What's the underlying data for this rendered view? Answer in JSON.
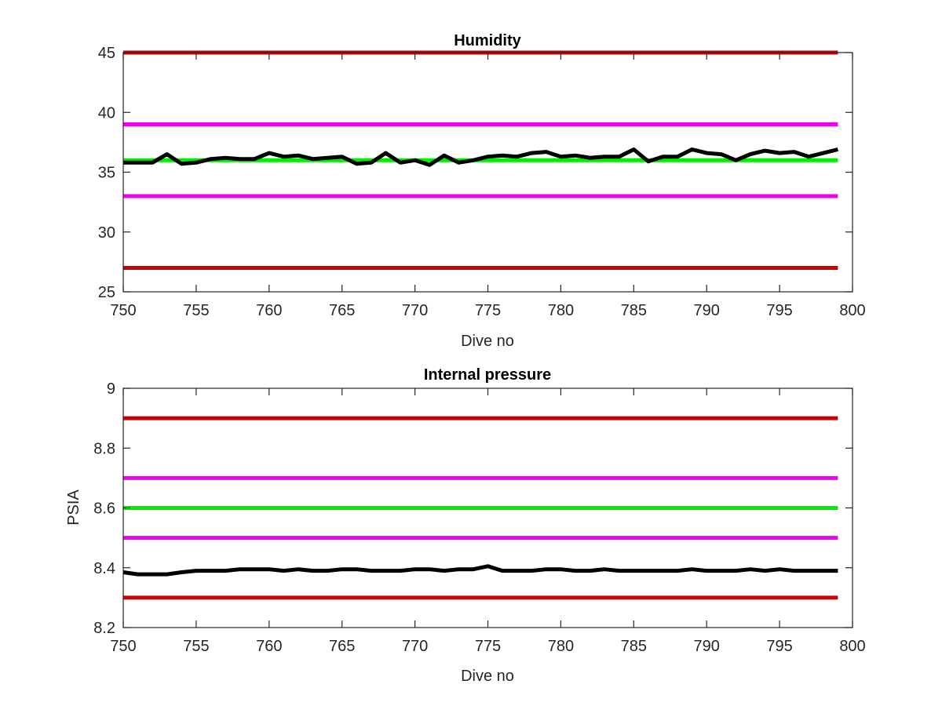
{
  "chart_data": [
    {
      "type": "line",
      "title": "Humidity",
      "xlabel": "Dive no",
      "ylabel": "",
      "xlim": [
        750,
        800
      ],
      "ylim": [
        25,
        45
      ],
      "xticks": [
        750,
        755,
        760,
        765,
        770,
        775,
        780,
        785,
        790,
        795,
        800
      ],
      "yticks": [
        25,
        30,
        35,
        40,
        45
      ],
      "x": [
        750,
        751,
        752,
        753,
        754,
        755,
        756,
        757,
        758,
        759,
        760,
        761,
        762,
        763,
        764,
        765,
        766,
        767,
        768,
        769,
        770,
        771,
        772,
        773,
        774,
        775,
        776,
        777,
        778,
        779,
        780,
        781,
        782,
        783,
        784,
        785,
        786,
        787,
        788,
        789,
        790,
        791,
        792,
        793,
        794,
        795,
        796,
        797,
        798,
        799
      ],
      "series": [
        {
          "color": "#000000",
          "values": [
            35.8,
            35.8,
            35.8,
            36.5,
            35.7,
            35.8,
            36.1,
            36.2,
            36.1,
            36.1,
            36.6,
            36.3,
            36.4,
            36.1,
            36.2,
            36.3,
            35.7,
            35.8,
            36.6,
            35.8,
            36.0,
            35.6,
            36.4,
            35.8,
            36.0,
            36.3,
            36.4,
            36.3,
            36.6,
            36.7,
            36.3,
            36.4,
            36.2,
            36.3,
            36.3,
            36.9,
            35.9,
            36.3,
            36.3,
            36.9,
            36.6,
            36.5,
            36.0,
            36.5,
            36.8,
            36.6,
            36.7,
            36.3,
            36.6,
            36.9
          ]
        },
        {
          "color": "#cc0000",
          "values": [
            45,
            45,
            45,
            45,
            45,
            45,
            45,
            45,
            45,
            45,
            45,
            45,
            45,
            45,
            45,
            45,
            45,
            45,
            45,
            45,
            45,
            45,
            45,
            45,
            45,
            45,
            45,
            45,
            45,
            45,
            45,
            45,
            45,
            45,
            45,
            45,
            45,
            45,
            45,
            45,
            45,
            45,
            45,
            45,
            45,
            45,
            45,
            45,
            45,
            45
          ]
        },
        {
          "color": "#ee00ee",
          "values": [
            39,
            39,
            39,
            39,
            39,
            39,
            39,
            39,
            39,
            39,
            39,
            39,
            39,
            39,
            39,
            39,
            39,
            39,
            39,
            39,
            39,
            39,
            39,
            39,
            39,
            39,
            39,
            39,
            39,
            39,
            39,
            39,
            39,
            39,
            39,
            39,
            39,
            39,
            39,
            39,
            39,
            39,
            39,
            39,
            39,
            39,
            39,
            39,
            39,
            39
          ]
        },
        {
          "color": "#00ee00",
          "values": [
            36,
            36,
            36,
            36,
            36,
            36,
            36,
            36,
            36,
            36,
            36,
            36,
            36,
            36,
            36,
            36,
            36,
            36,
            36,
            36,
            36,
            36,
            36,
            36,
            36,
            36,
            36,
            36,
            36,
            36,
            36,
            36,
            36,
            36,
            36,
            36,
            36,
            36,
            36,
            36,
            36,
            36,
            36,
            36,
            36,
            36,
            36,
            36,
            36,
            36
          ]
        },
        {
          "color": "#ee00ee",
          "values": [
            33,
            33,
            33,
            33,
            33,
            33,
            33,
            33,
            33,
            33,
            33,
            33,
            33,
            33,
            33,
            33,
            33,
            33,
            33,
            33,
            33,
            33,
            33,
            33,
            33,
            33,
            33,
            33,
            33,
            33,
            33,
            33,
            33,
            33,
            33,
            33,
            33,
            33,
            33,
            33,
            33,
            33,
            33,
            33,
            33,
            33,
            33,
            33,
            33,
            33
          ]
        },
        {
          "color": "#cc0000",
          "values": [
            27,
            27,
            27,
            27,
            27,
            27,
            27,
            27,
            27,
            27,
            27,
            27,
            27,
            27,
            27,
            27,
            27,
            27,
            27,
            27,
            27,
            27,
            27,
            27,
            27,
            27,
            27,
            27,
            27,
            27,
            27,
            27,
            27,
            27,
            27,
            27,
            27,
            27,
            27,
            27,
            27,
            27,
            27,
            27,
            27,
            27,
            27,
            27,
            27,
            27
          ]
        }
      ],
      "grid": false,
      "legend": "none"
    },
    {
      "type": "line",
      "title": "Internal pressure",
      "xlabel": "Dive no",
      "ylabel": "PSIA",
      "xlim": [
        750,
        800
      ],
      "ylim": [
        8.2,
        9
      ],
      "xticks": [
        750,
        755,
        760,
        765,
        770,
        775,
        780,
        785,
        790,
        795,
        800
      ],
      "yticks": [
        8.2,
        8.4,
        8.6,
        8.8,
        9
      ],
      "x": [
        750,
        751,
        752,
        753,
        754,
        755,
        756,
        757,
        758,
        759,
        760,
        761,
        762,
        763,
        764,
        765,
        766,
        767,
        768,
        769,
        770,
        771,
        772,
        773,
        774,
        775,
        776,
        777,
        778,
        779,
        780,
        781,
        782,
        783,
        784,
        785,
        786,
        787,
        788,
        789,
        790,
        791,
        792,
        793,
        794,
        795,
        796,
        797,
        798,
        799
      ],
      "series": [
        {
          "color": "#000000",
          "values": [
            8.385,
            8.378,
            8.378,
            8.378,
            8.385,
            8.39,
            8.39,
            8.39,
            8.395,
            8.395,
            8.395,
            8.39,
            8.395,
            8.39,
            8.39,
            8.395,
            8.395,
            8.39,
            8.39,
            8.39,
            8.395,
            8.395,
            8.39,
            8.395,
            8.395,
            8.405,
            8.39,
            8.39,
            8.39,
            8.395,
            8.395,
            8.39,
            8.39,
            8.395,
            8.39,
            8.39,
            8.39,
            8.39,
            8.39,
            8.395,
            8.39,
            8.39,
            8.39,
            8.395,
            8.39,
            8.395,
            8.39,
            8.39,
            8.39,
            8.39
          ]
        },
        {
          "color": "#cc0000",
          "values": [
            8.9,
            8.9,
            8.9,
            8.9,
            8.9,
            8.9,
            8.9,
            8.9,
            8.9,
            8.9,
            8.9,
            8.9,
            8.9,
            8.9,
            8.9,
            8.9,
            8.9,
            8.9,
            8.9,
            8.9,
            8.9,
            8.9,
            8.9,
            8.9,
            8.9,
            8.9,
            8.9,
            8.9,
            8.9,
            8.9,
            8.9,
            8.9,
            8.9,
            8.9,
            8.9,
            8.9,
            8.9,
            8.9,
            8.9,
            8.9,
            8.9,
            8.9,
            8.9,
            8.9,
            8.9,
            8.9,
            8.9,
            8.9,
            8.9,
            8.9
          ]
        },
        {
          "color": "#ee00ee",
          "values": [
            8.7,
            8.7,
            8.7,
            8.7,
            8.7,
            8.7,
            8.7,
            8.7,
            8.7,
            8.7,
            8.7,
            8.7,
            8.7,
            8.7,
            8.7,
            8.7,
            8.7,
            8.7,
            8.7,
            8.7,
            8.7,
            8.7,
            8.7,
            8.7,
            8.7,
            8.7,
            8.7,
            8.7,
            8.7,
            8.7,
            8.7,
            8.7,
            8.7,
            8.7,
            8.7,
            8.7,
            8.7,
            8.7,
            8.7,
            8.7,
            8.7,
            8.7,
            8.7,
            8.7,
            8.7,
            8.7,
            8.7,
            8.7,
            8.7,
            8.7
          ]
        },
        {
          "color": "#00ee00",
          "values": [
            8.6,
            8.6,
            8.6,
            8.6,
            8.6,
            8.6,
            8.6,
            8.6,
            8.6,
            8.6,
            8.6,
            8.6,
            8.6,
            8.6,
            8.6,
            8.6,
            8.6,
            8.6,
            8.6,
            8.6,
            8.6,
            8.6,
            8.6,
            8.6,
            8.6,
            8.6,
            8.6,
            8.6,
            8.6,
            8.6,
            8.6,
            8.6,
            8.6,
            8.6,
            8.6,
            8.6,
            8.6,
            8.6,
            8.6,
            8.6,
            8.6,
            8.6,
            8.6,
            8.6,
            8.6,
            8.6,
            8.6,
            8.6,
            8.6,
            8.6
          ]
        },
        {
          "color": "#ee00ee",
          "values": [
            8.5,
            8.5,
            8.5,
            8.5,
            8.5,
            8.5,
            8.5,
            8.5,
            8.5,
            8.5,
            8.5,
            8.5,
            8.5,
            8.5,
            8.5,
            8.5,
            8.5,
            8.5,
            8.5,
            8.5,
            8.5,
            8.5,
            8.5,
            8.5,
            8.5,
            8.5,
            8.5,
            8.5,
            8.5,
            8.5,
            8.5,
            8.5,
            8.5,
            8.5,
            8.5,
            8.5,
            8.5,
            8.5,
            8.5,
            8.5,
            8.5,
            8.5,
            8.5,
            8.5,
            8.5,
            8.5,
            8.5,
            8.5,
            8.5,
            8.5
          ]
        },
        {
          "color": "#cc0000",
          "values": [
            8.3,
            8.3,
            8.3,
            8.3,
            8.3,
            8.3,
            8.3,
            8.3,
            8.3,
            8.3,
            8.3,
            8.3,
            8.3,
            8.3,
            8.3,
            8.3,
            8.3,
            8.3,
            8.3,
            8.3,
            8.3,
            8.3,
            8.3,
            8.3,
            8.3,
            8.3,
            8.3,
            8.3,
            8.3,
            8.3,
            8.3,
            8.3,
            8.3,
            8.3,
            8.3,
            8.3,
            8.3,
            8.3,
            8.3,
            8.3,
            8.3,
            8.3,
            8.3,
            8.3,
            8.3,
            8.3,
            8.3,
            8.3,
            8.3,
            8.3
          ]
        }
      ],
      "grid": false,
      "legend": "none"
    }
  ]
}
